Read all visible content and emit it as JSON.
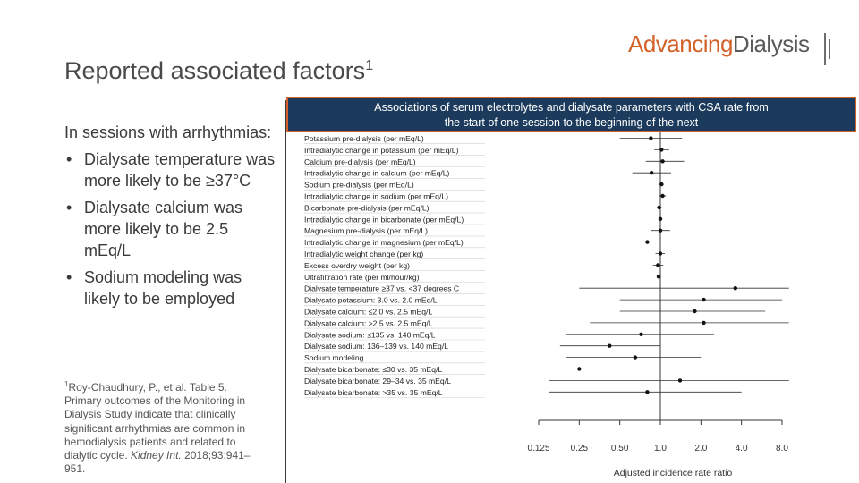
{
  "logo": {
    "part1": "Advancing",
    "part2": "Dialysis"
  },
  "slide": {
    "title": "Reported associated factors",
    "title_sup": "1",
    "intro": "In sessions with arrhythmias:",
    "bullets": [
      "Dialysate temperature was more likely to be ≥37°C",
      "Dialysate calcium was more likely to be 2.5 mEq/L",
      "Sodium modeling was likely to be employed"
    ],
    "footnote_sup": "1",
    "footnote_text": "Roy-Chaudhury, P., et al. Table 5. Primary outcomes of the Monitoring in Dialysis Study indicate that clinically significant arrhythmias are common in hemodialysis patients and related to dialytic cycle. ",
    "footnote_journal": "Kidney Int.",
    "footnote_cite": " 2018;93:941–951."
  },
  "chart_header": {
    "line1": "Associations of serum electrolytes and dialysate parameters with CSA rate from",
    "line2": "the start of one session to the beginning of the next"
  },
  "colors": {
    "header_bg": "#1b3a5c",
    "accent": "#d2622a"
  },
  "chart_data": {
    "type": "forest",
    "title": "Associations of serum electrolytes and dialysate parameters with CSA rate from the start of one session to the beginning of the next",
    "xlabel": "Adjusted incidence rate ratio",
    "xscale": "log2",
    "xlim": [
      0.125,
      8.0
    ],
    "xticks": [
      0.125,
      0.25,
      0.5,
      1.0,
      2.0,
      4.0,
      8.0
    ],
    "xtick_labels": [
      "0.125",
      "0.25",
      "0.50",
      "1.0",
      "2.0",
      "4.0",
      "8.0"
    ],
    "reference_line": 1.0,
    "rows": [
      {
        "label": "Potassium pre-dialysis (per mEq/L)",
        "estimate": 0.85,
        "ci": [
          0.5,
          1.45
        ]
      },
      {
        "label": "Intradialytic change in potassium (per mEq/L)",
        "estimate": 1.02,
        "ci": [
          0.9,
          1.16
        ]
      },
      {
        "label": "Calcium pre-dialysis (per mEq/L)",
        "estimate": 1.04,
        "ci": [
          0.78,
          1.5
        ]
      },
      {
        "label": "Intradialytic change in calcium (per mEq/L)",
        "estimate": 0.86,
        "ci": [
          0.62,
          1.2
        ]
      },
      {
        "label": "Sodium pre-dialysis (per mEq/L)",
        "estimate": 1.02,
        "ci": [
          0.98,
          1.06
        ]
      },
      {
        "label": "Intradialytic change in sodium (per mEq/L)",
        "estimate": 1.04,
        "ci": [
          0.98,
          1.1
        ]
      },
      {
        "label": "Bicarbonate pre-dialysis (per mEq/L)",
        "estimate": 0.98,
        "ci": [
          0.94,
          1.02
        ]
      },
      {
        "label": "Intradialytic change in bicarbonate (per mEq/L)",
        "estimate": 1.0,
        "ci": [
          0.97,
          1.03
        ]
      },
      {
        "label": "Magnesium pre-dialysis (per mEq/L)",
        "estimate": 1.0,
        "ci": [
          0.85,
          1.18
        ]
      },
      {
        "label": "Intradialytic change in magnesium (per mEq/L)",
        "estimate": 0.8,
        "ci": [
          0.42,
          1.5
        ]
      },
      {
        "label": "Intradialytic weight change (per kg)",
        "estimate": 1.0,
        "ci": [
          0.92,
          1.08
        ]
      },
      {
        "label": "Excess overdry weight (per kg)",
        "estimate": 0.96,
        "ci": [
          0.88,
          1.05
        ]
      },
      {
        "label": "Ultrafiltration rate (per ml/hour/kg)",
        "estimate": 0.97,
        "ci": [
          0.95,
          0.99
        ]
      },
      {
        "label": "Dialysate temperature ≥37 vs. <37 degrees C",
        "estimate": 3.6,
        "ci": [
          0.25,
          9.0
        ]
      },
      {
        "label": "Dialysate potassium: 3.0 vs. 2.0 mEq/L",
        "estimate": 2.1,
        "ci": [
          0.5,
          8.0
        ]
      },
      {
        "label": "Dialysate calcium: ≤2.0 vs. 2.5 mEq/L",
        "estimate": 1.8,
        "ci": [
          0.5,
          6.0
        ]
      },
      {
        "label": "Dialysate calcium: >2.5 vs. 2.5 mEq/L",
        "estimate": 2.1,
        "ci": [
          0.3,
          9.0
        ]
      },
      {
        "label": "Dialysate sodium: ≤135 vs. 140 mEq/L",
        "estimate": 0.72,
        "ci": [
          0.2,
          2.5
        ]
      },
      {
        "label": "Dialysate sodium: 136–139 vs. 140 mEq/L",
        "estimate": 0.42,
        "ci": [
          0.18,
          1.0
        ]
      },
      {
        "label": "Sodium modeling",
        "estimate": 0.65,
        "ci": [
          0.2,
          2.0
        ]
      },
      {
        "label": "Dialysate bicarbonate: ≤30 vs. 35 mEq/L",
        "estimate": 0.25,
        "ci": [
          0.25,
          0.25
        ]
      },
      {
        "label": "Dialysate bicarbonate: 29–34 vs. 35 mEq/L",
        "estimate": 1.4,
        "ci": [
          0.15,
          9.0
        ]
      },
      {
        "label": "Dialysate bicarbonate: >35 vs. 35 mEq/L",
        "estimate": 0.8,
        "ci": [
          0.15,
          4.0
        ]
      }
    ]
  }
}
